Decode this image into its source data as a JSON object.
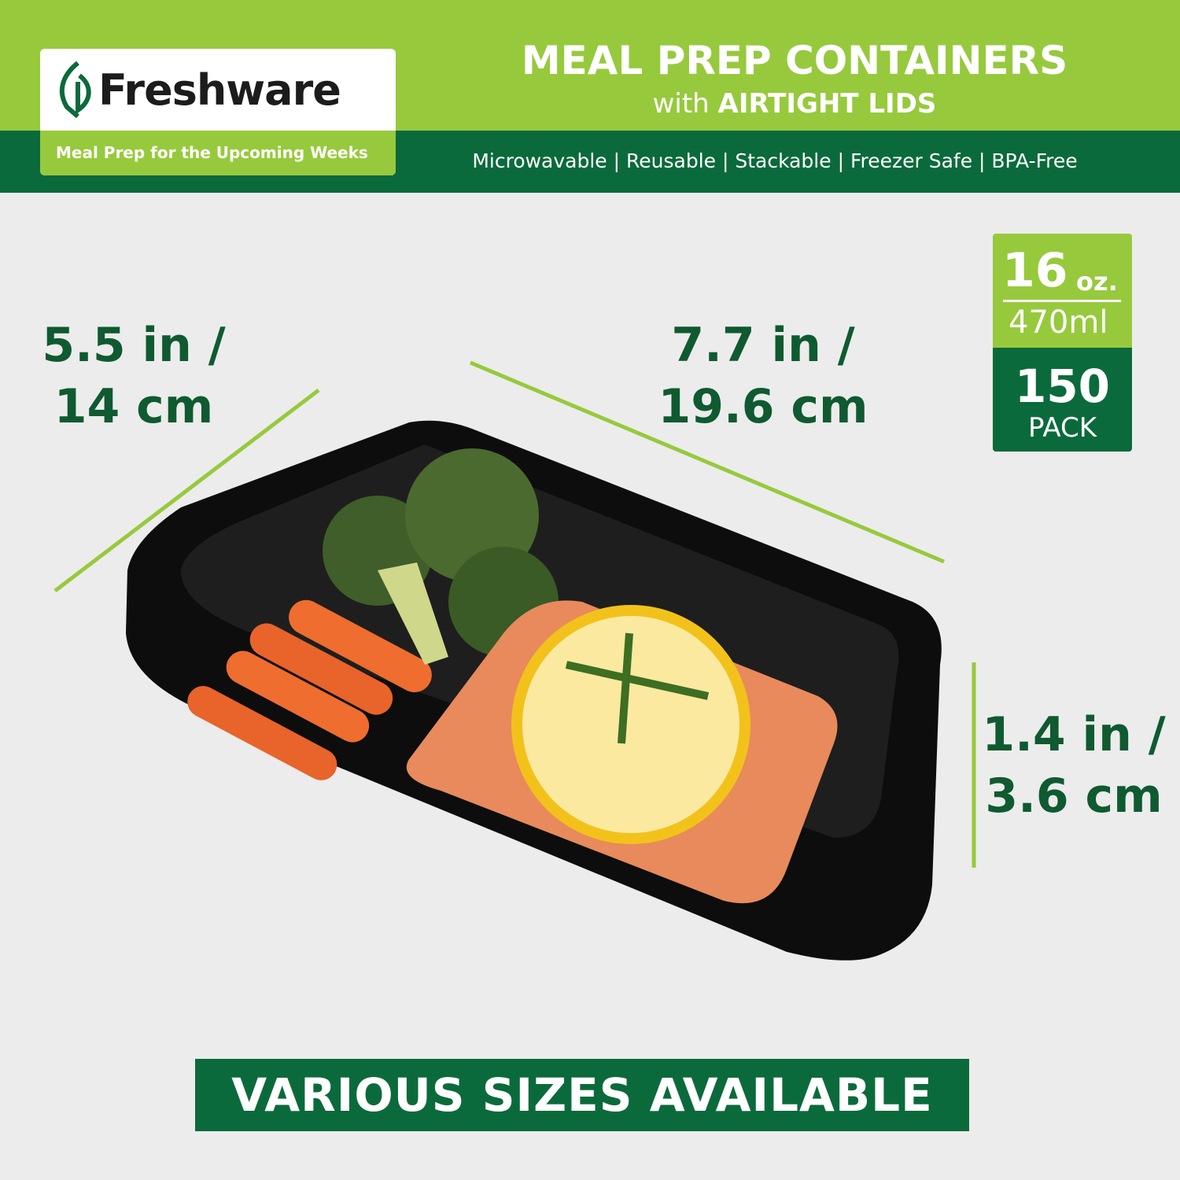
{
  "brand": {
    "name": "Freshware",
    "registered": "®",
    "tagline": "Meal Prep for the Upcoming Weeks"
  },
  "header": {
    "title": "MEAL PREP CONTAINERS",
    "subtitle_prefix": "with",
    "subtitle_bold": "AIRTIGHT LIDS",
    "features": "Microwavable | Reusable | Stackable | Freezer Safe | BPA-Free"
  },
  "dimensions": {
    "width": {
      "line1": "5.5 in /",
      "line2": "14 cm"
    },
    "length": {
      "line1": "7.7 in /",
      "line2": "19.6 cm"
    },
    "height": {
      "line1": "1.4 in /",
      "line2": "3.6 cm"
    }
  },
  "badge": {
    "capacity": "16",
    "capacity_unit": "oz.",
    "metric": "470",
    "metric_unit": "ml",
    "pack_count": "150",
    "pack_label": "PACK"
  },
  "footer": {
    "banner": "VARIOUS SIZES AVAILABLE"
  },
  "colors": {
    "lime": "#97c93d",
    "dark_green": "#0b6a3b",
    "text_green": "#0f5a30",
    "background": "#ececec"
  }
}
